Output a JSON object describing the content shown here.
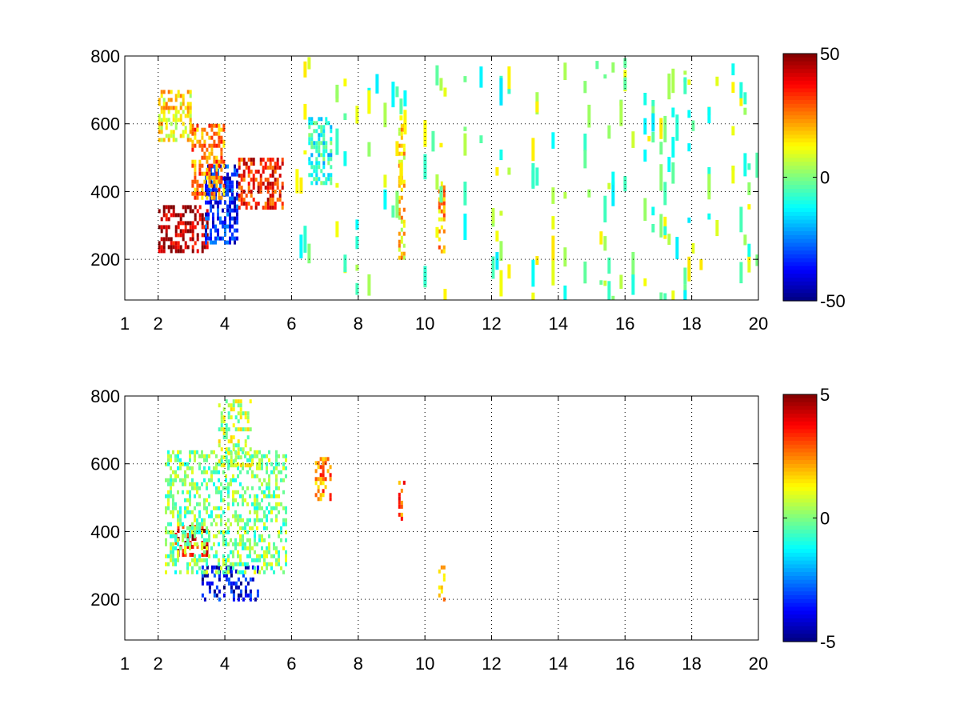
{
  "chart_data": [
    {
      "type": "heatmap",
      "title": "",
      "xlabel": "",
      "ylabel": "",
      "xlim": [
        1,
        20
      ],
      "ylim": [
        80,
        800
      ],
      "xticks": [
        1,
        2,
        4,
        6,
        8,
        10,
        12,
        14,
        16,
        18,
        20
      ],
      "xtick_labels": [
        "1",
        "2",
        "4",
        "6",
        "8",
        "10",
        "12",
        "14",
        "16",
        "18",
        "20"
      ],
      "yticks": [
        200,
        400,
        600,
        800
      ],
      "ytick_labels": [
        "200",
        "400",
        "600",
        "800"
      ],
      "grid": true,
      "colormap": "jet",
      "colorbar": {
        "range": [
          -50,
          50
        ],
        "tick_labels": [
          "50",
          "0",
          "-50"
        ],
        "ticks": [
          50,
          0,
          -50
        ]
      },
      "features": [
        {
          "x": [
            2.0,
            3.5
          ],
          "y": [
            230,
            360
          ],
          "value": 45
        },
        {
          "x": [
            3.4,
            4.4
          ],
          "y": [
            250,
            480
          ],
          "value": -35
        },
        {
          "x": [
            3.0,
            4.0
          ],
          "y": [
            380,
            600
          ],
          "value": 25
        },
        {
          "x": [
            4.4,
            5.7
          ],
          "y": [
            350,
            500
          ],
          "value": 35
        },
        {
          "x": [
            2.0,
            3.0
          ],
          "y": [
            550,
            700
          ],
          "value": 15
        },
        {
          "x": [
            6.5,
            7.2
          ],
          "y": [
            430,
            620
          ],
          "value": -10
        },
        {
          "x": [
            9.2,
            9.4
          ],
          "y": [
            200,
            600
          ],
          "value": 15
        },
        {
          "x": [
            10.4,
            10.6
          ],
          "y": [
            220,
            430
          ],
          "value": 20
        }
      ],
      "scattered_noise": {
        "x": [
          6,
          20
        ],
        "y": [
          90,
          800
        ],
        "value_range": [
          -15,
          15
        ]
      }
    },
    {
      "type": "heatmap",
      "title": "",
      "xlabel": "",
      "ylabel": "",
      "xlim": [
        1,
        20
      ],
      "ylim": [
        80,
        800
      ],
      "xticks": [
        1,
        2,
        4,
        6,
        8,
        10,
        12,
        14,
        16,
        18,
        20
      ],
      "xtick_labels": [
        "1",
        "2",
        "4",
        "6",
        "8",
        "10",
        "12",
        "14",
        "16",
        "18",
        "20"
      ],
      "yticks": [
        200,
        400,
        600,
        800
      ],
      "ytick_labels": [
        "200",
        "400",
        "600",
        "800"
      ],
      "grid": true,
      "colormap": "jet",
      "colorbar": {
        "range": [
          -5,
          5
        ],
        "tick_labels": [
          "5",
          "0",
          "-5"
        ],
        "ticks": [
          5,
          0,
          -5
        ]
      },
      "features": [
        {
          "x": [
            2.5,
            3.5
          ],
          "y": [
            330,
            420
          ],
          "value": 4
        },
        {
          "x": [
            3.3,
            5.0
          ],
          "y": [
            200,
            300
          ],
          "value": -4
        },
        {
          "x": [
            2.2,
            5.8
          ],
          "y": [
            280,
            640
          ],
          "value": 0
        },
        {
          "x": [
            3.8,
            4.8
          ],
          "y": [
            600,
            790
          ],
          "value": 0.5
        },
        {
          "x": [
            6.7,
            7.2
          ],
          "y": [
            500,
            620
          ],
          "value": 2.5
        },
        {
          "x": [
            9.2,
            9.4
          ],
          "y": [
            440,
            550
          ],
          "value": 3
        },
        {
          "x": [
            10.4,
            10.6
          ],
          "y": [
            190,
            300
          ],
          "value": 2
        }
      ]
    }
  ]
}
